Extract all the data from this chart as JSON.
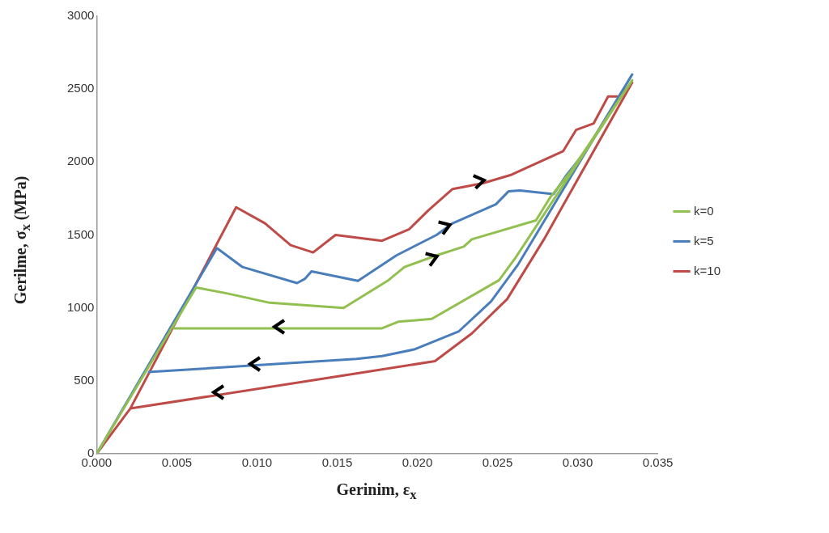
{
  "chart_data": {
    "type": "line",
    "xlabel": "Gerinim, ε$_{x}$",
    "ylabel": "Gerilme, σ$_{x}$ (MPa)",
    "series": [
      {
        "name": "k=0",
        "color": "#92c050",
        "x": [
          0,
          0.0062,
          0.0081,
          0.0108,
          0.0154,
          0.0182,
          0.0192,
          0.0212,
          0.0229,
          0.0234,
          0.0274,
          0.0283,
          0.0296,
          0.0334,
          0.0261,
          0.0251,
          0.0209,
          0.0188,
          0.0178,
          0.0048
        ],
        "values": [
          0,
          1140,
          1100,
          1035,
          1000,
          1190,
          1280,
          1360,
          1420,
          1470,
          1600,
          1760,
          1940,
          2560,
          1340,
          1190,
          925,
          905,
          860,
          860
        ]
      },
      {
        "name": "k=5",
        "color": "#4a7ebb",
        "x": [
          0,
          0.0075,
          0.0091,
          0.0125,
          0.013,
          0.0134,
          0.0163,
          0.0187,
          0.0212,
          0.0222,
          0.0249,
          0.0257,
          0.0264,
          0.0285,
          0.0293,
          0.0305,
          0.0334,
          0.0263,
          0.0246,
          0.0226,
          0.0198,
          0.0178,
          0.0162,
          0.0032
        ],
        "values": [
          0,
          1410,
          1280,
          1170,
          1200,
          1250,
          1185,
          1360,
          1500,
          1580,
          1710,
          1800,
          1805,
          1780,
          1910,
          2075,
          2600,
          1300,
          1045,
          840,
          715,
          670,
          650,
          560
        ]
      },
      {
        "name": "k=10",
        "color": "#be4b48",
        "x": [
          0,
          0.0021,
          0.0087,
          0.0105,
          0.0121,
          0.0135,
          0.0149,
          0.0178,
          0.0195,
          0.0207,
          0.0222,
          0.0241,
          0.0258,
          0.0291,
          0.0299,
          0.031,
          0.0319,
          0.0326,
          0.0334,
          0.0279,
          0.0256,
          0.0234,
          0.0211,
          0.0162,
          0.0021
        ],
        "values": [
          0,
          310,
          1690,
          1580,
          1430,
          1380,
          1500,
          1460,
          1540,
          1670,
          1815,
          1855,
          1910,
          2075,
          2220,
          2265,
          2450,
          2450,
          2545,
          1470,
          1060,
          825,
          635,
          550,
          310
        ]
      }
    ],
    "xlim": [
      0,
      0.035
    ],
    "ylim": [
      0,
      3000
    ],
    "xticks": [
      {
        "value": 0,
        "label": "0.000"
      },
      0.005,
      {
        "value": 0.01,
        "label": "0.010"
      },
      0.015,
      {
        "value": 0.02,
        "label": "0.020"
      },
      0.025,
      {
        "value": 0.03,
        "label": "0.030"
      },
      0.035
    ],
    "yticks": [
      0,
      500,
      1000,
      1500,
      2000,
      2500,
      3000
    ],
    "grid": false,
    "legend": "right",
    "marker": "none",
    "line_style": "solid"
  }
}
